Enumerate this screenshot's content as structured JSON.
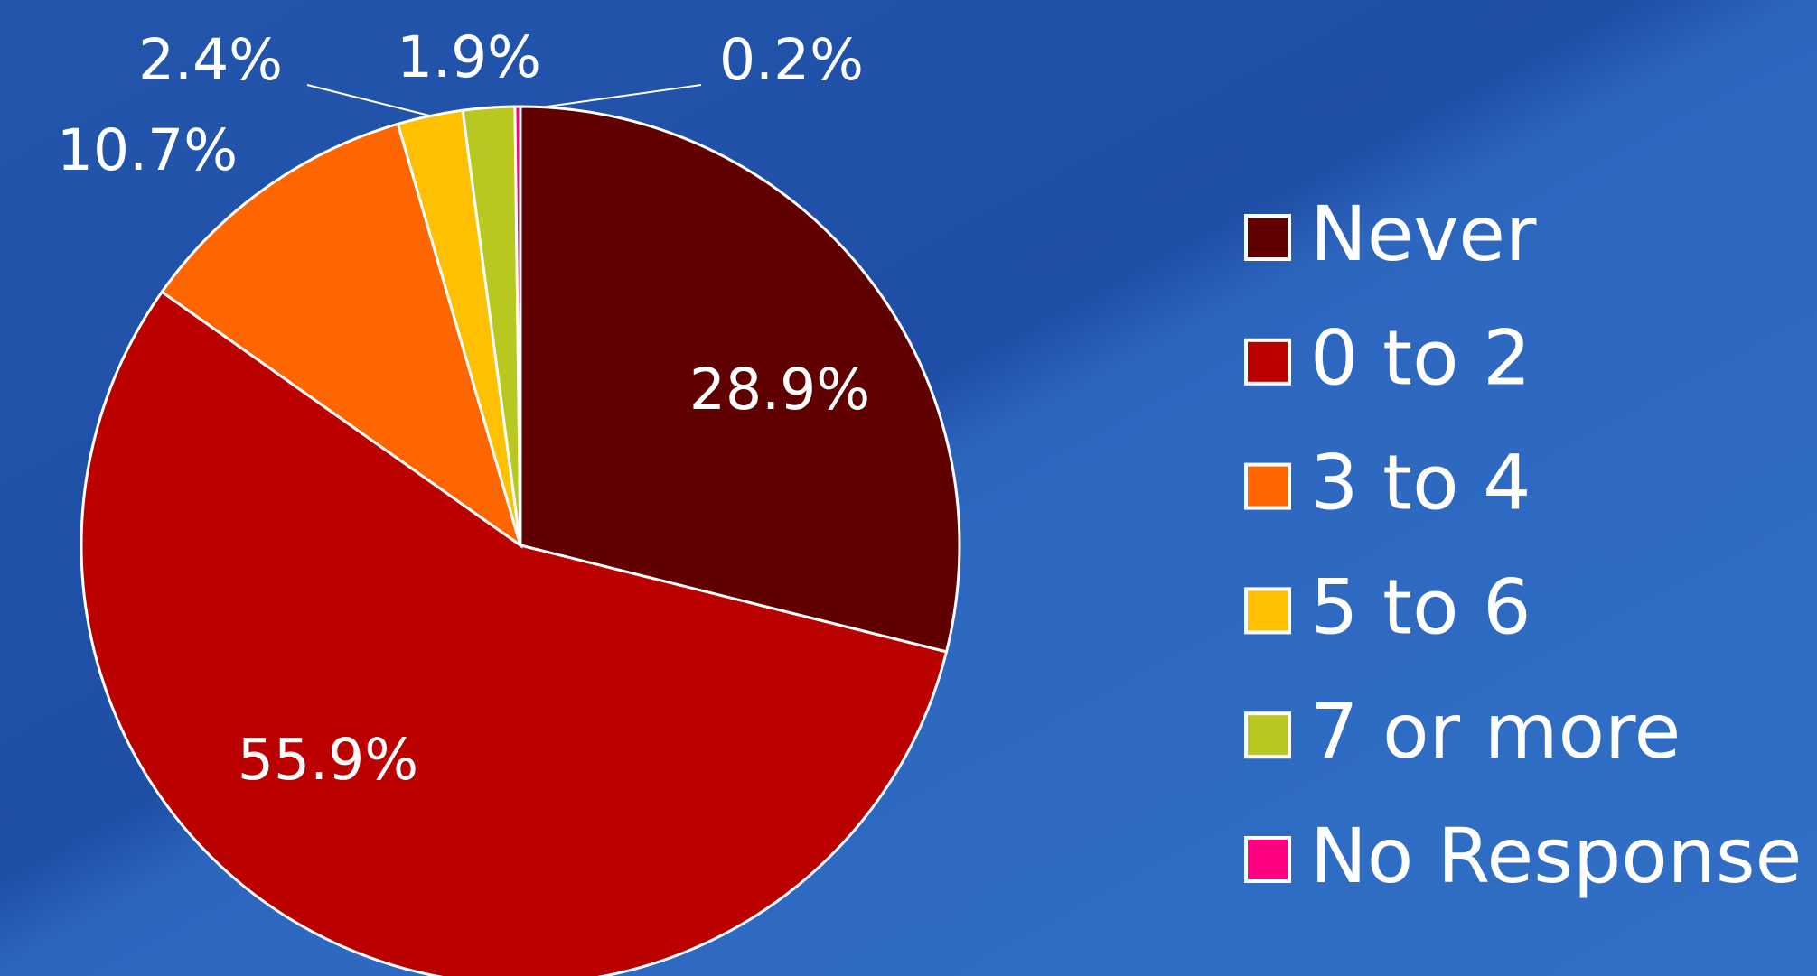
{
  "chart_data": {
    "type": "pie",
    "categories": [
      "Never",
      "0 to 2",
      "3 to 4",
      "5 to 6",
      "7 or more",
      "No Response"
    ],
    "values": [
      28.9,
      55.9,
      10.7,
      2.4,
      1.9,
      0.2
    ],
    "value_labels": [
      "28.9%",
      "55.9%",
      "10.7%",
      "2.4%",
      "1.9%",
      "0.2%"
    ],
    "colors": [
      "#600000",
      "#bb0000",
      "#ff6600",
      "#ffc000",
      "#b8c820",
      "#ff0080"
    ],
    "legend": "right"
  }
}
